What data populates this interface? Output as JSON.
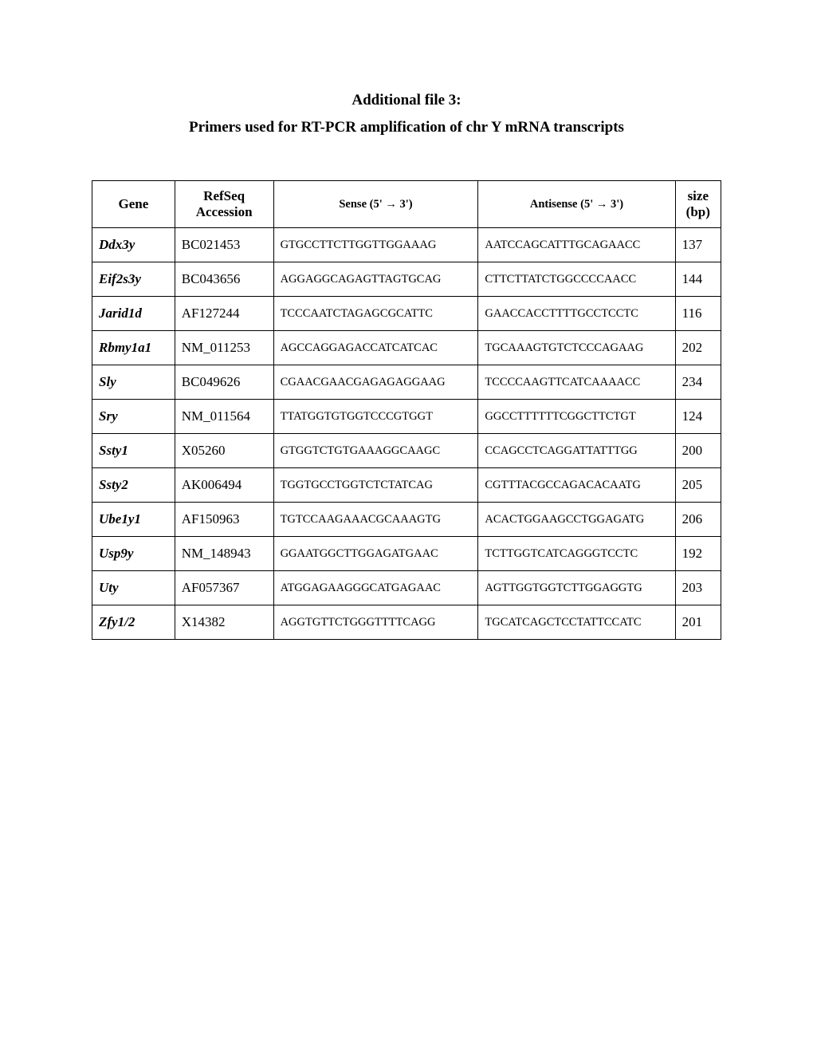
{
  "title_line1": "Additional file 3:",
  "title_line2": "Primers used for RT-PCR amplification of chr Y mRNA transcripts",
  "table": {
    "columns": [
      {
        "label": "Gene"
      },
      {
        "label": "RefSeq Accession"
      },
      {
        "label": "Sense (5' → 3')"
      },
      {
        "label": "Antisense (5' → 3')"
      },
      {
        "label": "size (bp)"
      }
    ],
    "rows": [
      {
        "gene": "Ddx3y",
        "accession": "BC021453",
        "sense": "GTGCCTTCTTGGTTGGAAAG",
        "antisense": "AATCCAGCATTTGCAGAACC",
        "size": "137"
      },
      {
        "gene": "Eif2s3y",
        "accession": "BC043656",
        "sense": "AGGAGGCAGAGTTAGTGCAG",
        "antisense": "CTTCTTATCTGGCCCCAACC",
        "size": "144"
      },
      {
        "gene": "Jarid1d",
        "accession": "AF127244",
        "sense": "TCCCAATCTAGAGCGCATTC",
        "antisense": "GAACCACCTTTTGCCTCCTC",
        "size": "116"
      },
      {
        "gene": "Rbmy1a1",
        "accession": "NM_011253",
        "sense": "AGCCAGGAGACCATCATCAC",
        "antisense": "TGCAAAGTGTCTCCCAGAAG",
        "size": "202"
      },
      {
        "gene": "Sly",
        "accession": "BC049626",
        "sense": "CGAACGAACGAGAGAGGAAG",
        "antisense": "TCCCCAAGTTCATCAAAACC",
        "size": "234"
      },
      {
        "gene": "Sry",
        "accession": "NM_011564",
        "sense": "TTATGGTGTGGTCCCGTGGT",
        "antisense": "GGCCTTTTTTCGGCTTCTGT",
        "size": "124"
      },
      {
        "gene": "Ssty1",
        "accession": "X05260",
        "sense": "GTGGTCTGTGAAAGGCAAGC",
        "antisense": "CCAGCCTCAGGATTATTTGG",
        "size": "200"
      },
      {
        "gene": "Ssty2",
        "accession": "AK006494",
        "sense": "TGGTGCCTGGTCTCTATCAG",
        "antisense": "CGTTTACGCCAGACACAATG",
        "size": "205"
      },
      {
        "gene": "Ube1y1",
        "accession": "AF150963",
        "sense": "TGTCCAAGAAACGCAAAGTG",
        "antisense": "ACACTGGAAGCCTGGAGATG",
        "size": "206"
      },
      {
        "gene": "Usp9y",
        "accession": "NM_148943",
        "sense": "GGAATGGCTTGGAGATGAAC",
        "antisense": "TCTTGGTCATCAGGGTCCTC",
        "size": "192"
      },
      {
        "gene": "Uty",
        "accession": "AF057367",
        "sense": "ATGGAGAAGGGCATGAGAAC",
        "antisense": "AGTTGGTGGTCTTGGAGGTG",
        "size": "203"
      },
      {
        "gene": "Zfy1/2",
        "accession": "X14382",
        "sense": "AGGTGTTCTGGGTTTTCAGG",
        "antisense": "TGCATCAGCTCCTATTCCATC",
        "size": "201"
      }
    ]
  },
  "styles": {
    "page_bg": "#ffffff",
    "border_color": "#000000",
    "header_fontsize": 17,
    "gene_fontsize": 17,
    "primer_fontsize": 14.5,
    "title_fontsize": 19
  }
}
